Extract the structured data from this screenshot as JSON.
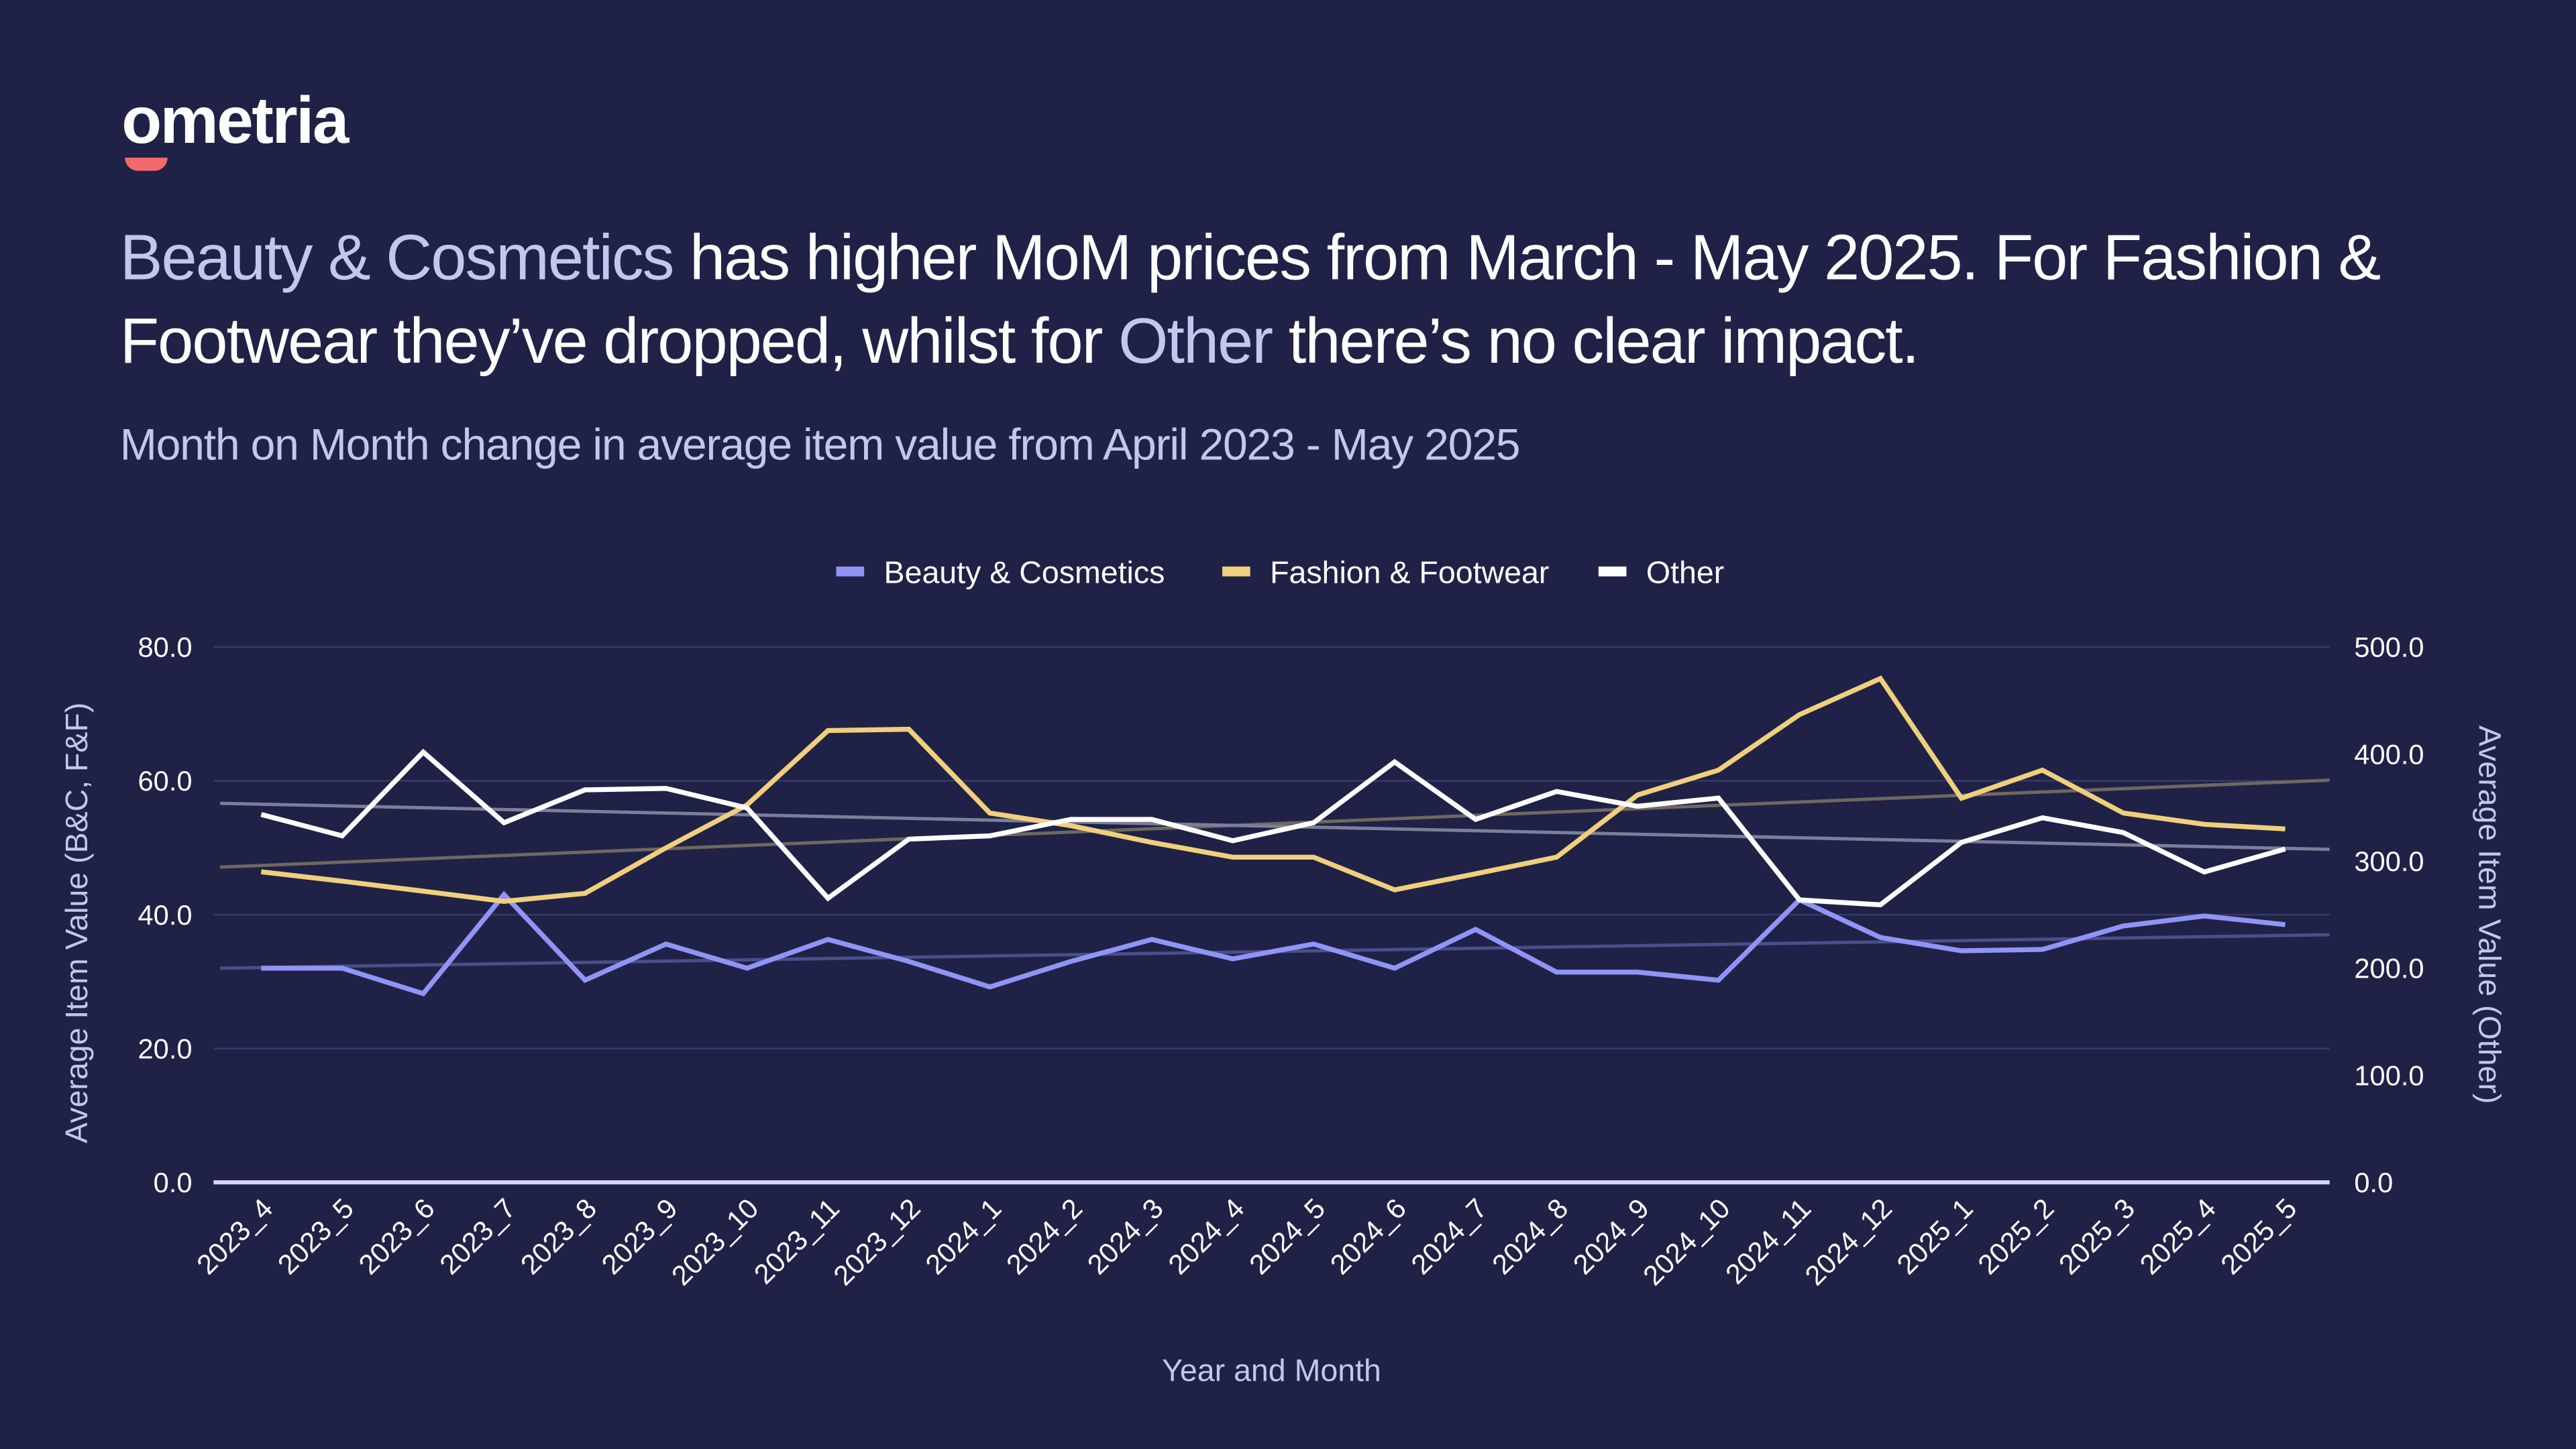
{
  "brand": {
    "logo_text": "ometria"
  },
  "headline": {
    "part1_highlight": "Beauty & Cosmetics",
    "part2": " has higher MoM prices from March - May 2025. For Fashion & Footwear they’ve dropped, whilst for ",
    "part3_highlight": "Other",
    "part4": " there’s no clear impact."
  },
  "subtitle": "Month on Month change in average item value from April 2023 - May 2025",
  "colors": {
    "background": "#1f2246",
    "highlight_text": "#c5c6f0",
    "grid": "#353a6a"
  },
  "chart_data": {
    "type": "line",
    "xlabel": "Year and Month",
    "ylabel_left": "Average Item Value (B&C, F&F)",
    "ylabel_right": "Average Item Value (Other)",
    "ylim_left": [
      0,
      80
    ],
    "ylim_right": [
      0,
      500
    ],
    "yticks_left": [
      "0.0",
      "20.0",
      "40.0",
      "60.0",
      "80.0"
    ],
    "yticks_right": [
      "0.0",
      "100.0",
      "200.0",
      "300.0",
      "400.0",
      "500.0"
    ],
    "grid": true,
    "legend_position": "top-center",
    "categories": [
      "2023_4",
      "2023_5",
      "2023_6",
      "2023_7",
      "2023_8",
      "2023_9",
      "2023_10",
      "2023_11",
      "2023_12",
      "2024_1",
      "2024_2",
      "2024_3",
      "2024_4",
      "2024_5",
      "2024_6",
      "2024_7",
      "2024_8",
      "2024_9",
      "2024_10",
      "2024_11",
      "2024_12",
      "2025_1",
      "2025_2",
      "2025_3",
      "2025_4",
      "2025_5"
    ],
    "series": [
      {
        "name": "Beauty & Cosmetics",
        "axis": "left",
        "color": "#8f94f5",
        "trend_color": "#4a4f8a",
        "values": [
          32,
          32,
          28.2,
          43,
          30.2,
          35.6,
          32,
          36.3,
          33,
          29.2,
          33,
          36.3,
          33.4,
          35.6,
          32,
          37.8,
          31.4,
          31.4,
          30.2,
          42.2,
          36.6,
          34.6,
          34.8,
          38.3,
          39.8,
          38.5
        ],
        "trend": [
          32,
          37
        ]
      },
      {
        "name": "Fashion & Footwear",
        "axis": "left",
        "color": "#f0cf7d",
        "trend_color": "#6f6860",
        "values": [
          46.4,
          45,
          43.5,
          42,
          43.2,
          50,
          56.4,
          67.5,
          67.7,
          55.2,
          53.3,
          50.8,
          48.6,
          48.6,
          43.7,
          46.1,
          48.6,
          57.9,
          61.6,
          69.9,
          75.3,
          57.4,
          61.6,
          55.2,
          53.5,
          52.8
        ],
        "trend": [
          47.1,
          60.1
        ]
      },
      {
        "name": "Other",
        "axis": "right",
        "color": "#ffffff",
        "trend_color": "#7c7f99",
        "values": [
          343.6,
          323.6,
          401.8,
          335.9,
          366.6,
          368,
          349.7,
          265.3,
          320.6,
          323.6,
          339,
          339,
          319,
          335.9,
          392.6,
          339,
          365,
          351.2,
          358.9,
          263.8,
          259.2,
          317.5,
          340.5,
          326.7,
          289.9,
          311.3
        ],
        "trend": [
          354,
          311
        ]
      }
    ]
  }
}
